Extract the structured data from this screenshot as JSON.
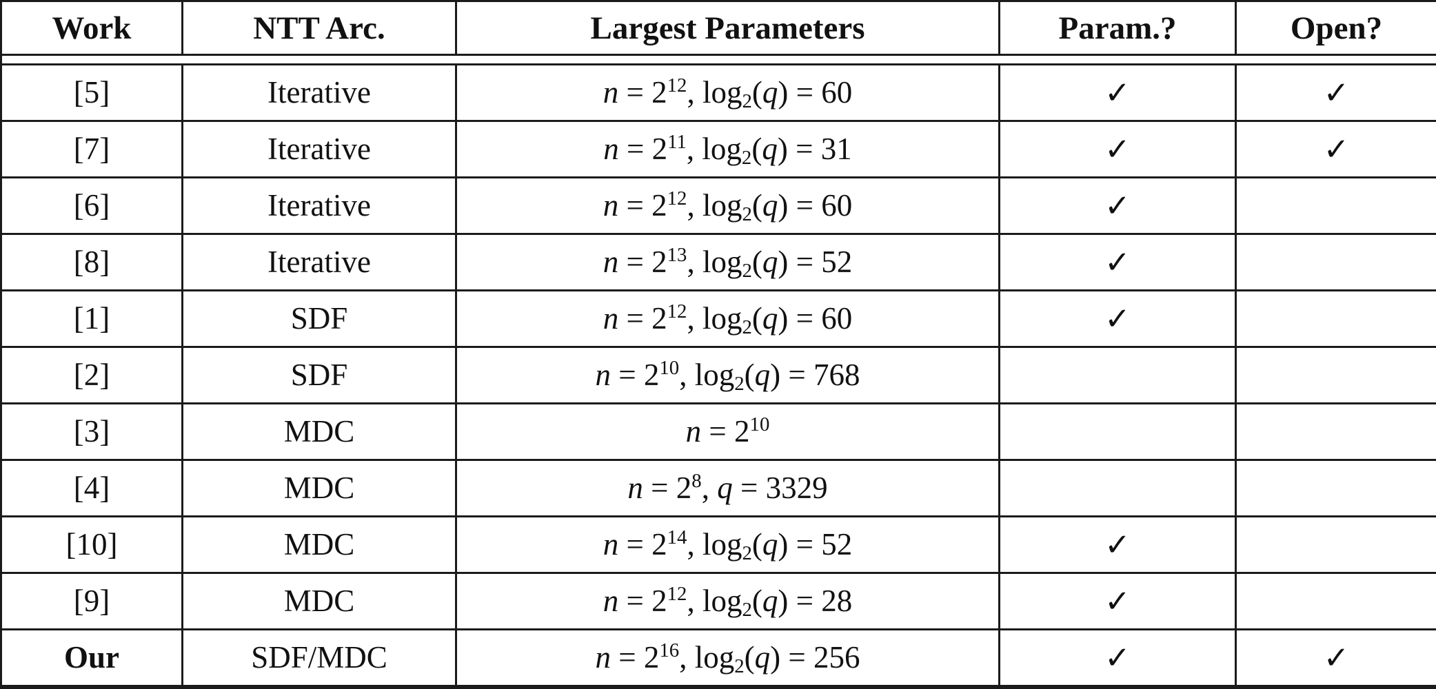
{
  "table": {
    "headers": [
      "Work",
      "NTT Arc.",
      "Largest Parameters",
      "Param.?",
      "Open?"
    ],
    "rows": [
      {
        "work": "[5]",
        "arch": "Iterative",
        "params": "*n* = 2^{12}, log_{2}(*q*) = 60",
        "param": "✓",
        "open": "✓"
      },
      {
        "work": "[7]",
        "arch": "Iterative",
        "params": "*n* = 2^{11}, log_{2}(*q*) = 31",
        "param": "✓",
        "open": "✓"
      },
      {
        "work": "[6]",
        "arch": "Iterative",
        "params": "*n* = 2^{12}, log_{2}(*q*) = 60",
        "param": "✓",
        "open": ""
      },
      {
        "work": "[8]",
        "arch": "Iterative",
        "params": "*n* = 2^{13}, log_{2}(*q*) = 52",
        "param": "✓",
        "open": ""
      },
      {
        "work": "[1]",
        "arch": "SDF",
        "params": "*n* = 2^{12}, log_{2}(*q*) = 60",
        "param": "✓",
        "open": ""
      },
      {
        "work": "[2]",
        "arch": "SDF",
        "params": "*n* = 2^{10}, log_{2}(*q*) = 768",
        "param": "",
        "open": ""
      },
      {
        "work": "[3]",
        "arch": "MDC",
        "params": "*n* = 2^{10}",
        "param": "",
        "open": ""
      },
      {
        "work": "[4]",
        "arch": "MDC",
        "params": "*n* = 2^{8}, *q* = 3329",
        "param": "",
        "open": ""
      },
      {
        "work": "[10]",
        "arch": "MDC",
        "params": "*n* = 2^{14}, log_{2}(*q*) = 52",
        "param": "✓",
        "open": ""
      },
      {
        "work": "[9]",
        "arch": "MDC",
        "params": "*n* = 2^{12}, log_{2}(*q*) = 28",
        "param": "✓",
        "open": ""
      },
      {
        "work": "Our",
        "arch": "SDF/MDC",
        "params": "*n* = 2^{16}, log_{2}(*q*) = 256",
        "param": "✓",
        "open": "✓"
      }
    ]
  },
  "colors": {
    "border": "#1b1b1b",
    "text": "#111111",
    "background": "#ffffff"
  }
}
